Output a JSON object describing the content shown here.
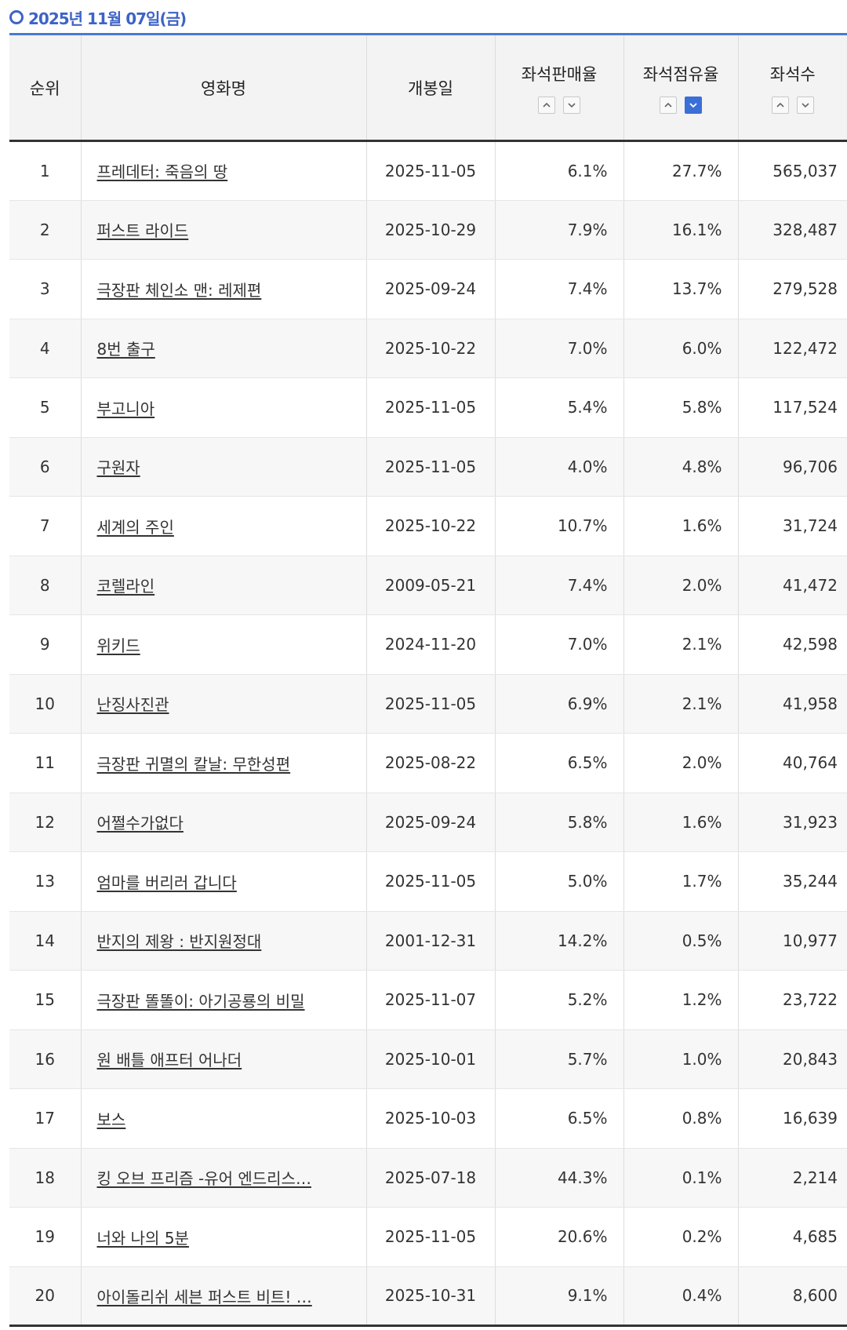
{
  "header": {
    "date_label": "2025년 11월 07일(금)"
  },
  "table": {
    "columns": {
      "rank": "순위",
      "title": "영화명",
      "release": "개봉일",
      "sales_rate": "좌석판매율",
      "occupancy_rate": "좌석점유율",
      "seats": "좌석수"
    },
    "sort_active": "occupancy_rate-desc",
    "rows": [
      {
        "rank": "1",
        "title": "프레데터: 죽음의 땅",
        "release": "2025-11-05",
        "sales_rate": "6.1%",
        "occupancy_rate": "27.7%",
        "seats": "565,037"
      },
      {
        "rank": "2",
        "title": "퍼스트 라이드",
        "release": "2025-10-29",
        "sales_rate": "7.9%",
        "occupancy_rate": "16.1%",
        "seats": "328,487"
      },
      {
        "rank": "3",
        "title": "극장판 체인소 맨: 레제편",
        "release": "2025-09-24",
        "sales_rate": "7.4%",
        "occupancy_rate": "13.7%",
        "seats": "279,528"
      },
      {
        "rank": "4",
        "title": "8번 출구",
        "release": "2025-10-22",
        "sales_rate": "7.0%",
        "occupancy_rate": "6.0%",
        "seats": "122,472"
      },
      {
        "rank": "5",
        "title": "부고니아",
        "release": "2025-11-05",
        "sales_rate": "5.4%",
        "occupancy_rate": "5.8%",
        "seats": "117,524"
      },
      {
        "rank": "6",
        "title": "구원자",
        "release": "2025-11-05",
        "sales_rate": "4.0%",
        "occupancy_rate": "4.8%",
        "seats": "96,706"
      },
      {
        "rank": "7",
        "title": "세계의 주인",
        "release": "2025-10-22",
        "sales_rate": "10.7%",
        "occupancy_rate": "1.6%",
        "seats": "31,724"
      },
      {
        "rank": "8",
        "title": "코렐라인",
        "release": "2009-05-21",
        "sales_rate": "7.4%",
        "occupancy_rate": "2.0%",
        "seats": "41,472"
      },
      {
        "rank": "9",
        "title": "위키드",
        "release": "2024-11-20",
        "sales_rate": "7.0%",
        "occupancy_rate": "2.1%",
        "seats": "42,598"
      },
      {
        "rank": "10",
        "title": "난징사진관",
        "release": "2025-11-05",
        "sales_rate": "6.9%",
        "occupancy_rate": "2.1%",
        "seats": "41,958"
      },
      {
        "rank": "11",
        "title": "극장판 귀멸의 칼날: 무한성편",
        "release": "2025-08-22",
        "sales_rate": "6.5%",
        "occupancy_rate": "2.0%",
        "seats": "40,764"
      },
      {
        "rank": "12",
        "title": "어쩔수가없다",
        "release": "2025-09-24",
        "sales_rate": "5.8%",
        "occupancy_rate": "1.6%",
        "seats": "31,923"
      },
      {
        "rank": "13",
        "title": "엄마를 버리러 갑니다",
        "release": "2025-11-05",
        "sales_rate": "5.0%",
        "occupancy_rate": "1.7%",
        "seats": "35,244"
      },
      {
        "rank": "14",
        "title": "반지의 제왕 : 반지원정대",
        "release": "2001-12-31",
        "sales_rate": "14.2%",
        "occupancy_rate": "0.5%",
        "seats": "10,977"
      },
      {
        "rank": "15",
        "title": "극장판 똘똘이: 아기공룡의 비밀",
        "release": "2025-11-07",
        "sales_rate": "5.2%",
        "occupancy_rate": "1.2%",
        "seats": "23,722"
      },
      {
        "rank": "16",
        "title": "원 배틀 애프터 어나더",
        "release": "2025-10-01",
        "sales_rate": "5.7%",
        "occupancy_rate": "1.0%",
        "seats": "20,843"
      },
      {
        "rank": "17",
        "title": "보스",
        "release": "2025-10-03",
        "sales_rate": "6.5%",
        "occupancy_rate": "0.8%",
        "seats": "16,639"
      },
      {
        "rank": "18",
        "title": "킹 오브 프리즘 -유어 엔드리스…",
        "release": "2025-07-18",
        "sales_rate": "44.3%",
        "occupancy_rate": "0.1%",
        "seats": "2,214"
      },
      {
        "rank": "19",
        "title": "너와 나의 5분",
        "release": "2025-11-05",
        "sales_rate": "20.6%",
        "occupancy_rate": "0.2%",
        "seats": "4,685"
      },
      {
        "rank": "20",
        "title": "아이돌리쉬 세븐 퍼스트 비트! …",
        "release": "2025-10-31",
        "sales_rate": "9.1%",
        "occupancy_rate": "0.4%",
        "seats": "8,600"
      }
    ]
  }
}
